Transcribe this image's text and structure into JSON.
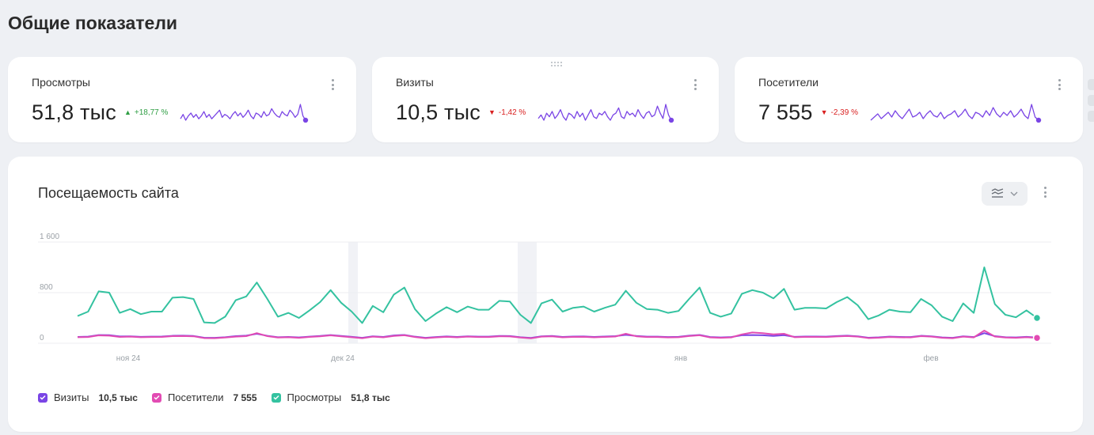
{
  "page_title": "Общие показатели",
  "colors": {
    "visits": "#7a45e5",
    "visitors": "#e24bb3",
    "views": "#34c2a0",
    "delta_up": "#2f9e44",
    "delta_down": "#d92020"
  },
  "metrics": [
    {
      "id": "views",
      "title": "Просмотры",
      "value": "51,8 тыс",
      "delta": "+18,77 %",
      "direction": "up",
      "sparkline": [
        6,
        9,
        5,
        8,
        10,
        7,
        9,
        6,
        8,
        11,
        7,
        9,
        6,
        8,
        10,
        12,
        7,
        9,
        8,
        6,
        9,
        11,
        8,
        10,
        7,
        9,
        12,
        8,
        6,
        10,
        9,
        7,
        11,
        8,
        9,
        13,
        10,
        8,
        7,
        11,
        9,
        8,
        12,
        10,
        7,
        9,
        16,
        8,
        5
      ]
    },
    {
      "id": "visits",
      "title": "Визиты",
      "value": "10,5 тыс",
      "delta": "-1,42 %",
      "direction": "down",
      "sparkline": [
        7,
        9,
        6,
        10,
        8,
        11,
        7,
        9,
        12,
        8,
        6,
        10,
        9,
        7,
        11,
        8,
        10,
        6,
        9,
        12,
        8,
        7,
        10,
        9,
        11,
        8,
        6,
        9,
        10,
        13,
        8,
        7,
        11,
        9,
        10,
        8,
        12,
        9,
        7,
        10,
        11,
        8,
        9,
        14,
        10,
        7,
        15,
        9,
        6
      ]
    },
    {
      "id": "visitors",
      "title": "Посетители",
      "value": "7 555",
      "delta": "-2,39 %",
      "direction": "down",
      "sparkline": [
        6,
        8,
        10,
        7,
        9,
        11,
        8,
        12,
        9,
        7,
        10,
        13,
        8,
        9,
        11,
        7,
        10,
        12,
        9,
        8,
        11,
        7,
        9,
        10,
        12,
        8,
        10,
        13,
        9,
        7,
        11,
        10,
        8,
        12,
        9,
        14,
        10,
        8,
        11,
        9,
        12,
        8,
        10,
        13,
        9,
        7,
        16,
        8,
        6
      ]
    }
  ],
  "traffic_chart": {
    "title": "Посещаемость сайта",
    "chart_data": {
      "type": "line",
      "yticks": [
        "1 600",
        "800",
        "0"
      ],
      "ylim": [
        0,
        1600
      ],
      "xticks": [
        "ноя 24",
        "дек 24",
        "янв",
        "фев"
      ],
      "series": [
        {
          "name": "Просмотры",
          "color": "#34c2a0",
          "values": [
            430,
            500,
            820,
            800,
            480,
            540,
            460,
            500,
            500,
            720,
            730,
            700,
            330,
            320,
            420,
            680,
            740,
            960,
            700,
            420,
            480,
            400,
            520,
            650,
            840,
            640,
            500,
            320,
            590,
            490,
            770,
            880,
            540,
            350,
            470,
            570,
            490,
            580,
            530,
            530,
            670,
            660,
            450,
            320,
            630,
            690,
            500,
            560,
            580,
            500,
            560,
            610,
            830,
            640,
            540,
            530,
            480,
            510,
            700,
            880,
            480,
            420,
            470,
            780,
            840,
            800,
            710,
            860,
            530,
            560,
            560,
            550,
            650,
            730,
            600,
            380,
            440,
            530,
            500,
            490,
            700,
            600,
            420,
            350,
            630,
            480,
            1200,
            620,
            450,
            410,
            520,
            400
          ]
        },
        {
          "name": "Визиты",
          "color": "#7a45e5",
          "values": [
            100,
            105,
            130,
            128,
            108,
            110,
            102,
            104,
            106,
            118,
            120,
            115,
            88,
            86,
            96,
            112,
            120,
            150,
            118,
            95,
            100,
            92,
            105,
            115,
            130,
            115,
            102,
            86,
            110,
            100,
            124,
            132,
            104,
            86,
            98,
            108,
            100,
            110,
            104,
            104,
            116,
            114,
            96,
            84,
            110,
            116,
            100,
            106,
            108,
            100,
            106,
            112,
            132,
            116,
            104,
            104,
            98,
            102,
            120,
            132,
            98,
            92,
            98,
            126,
            130,
            126,
            116,
            128,
            102,
            106,
            106,
            104,
            114,
            120,
            110,
            88,
            94,
            104,
            100,
            98,
            118,
            110,
            92,
            86,
            110,
            98,
            160,
            112,
            96,
            92,
            102,
            90
          ]
        },
        {
          "name": "Посетители",
          "color": "#e24bb3",
          "values": [
            95,
            98,
            125,
            120,
            100,
            104,
            96,
            98,
            100,
            112,
            114,
            110,
            82,
            80,
            90,
            105,
            112,
            160,
            112,
            90,
            96,
            86,
            100,
            110,
            125,
            110,
            96,
            80,
            104,
            94,
            116,
            126,
            98,
            80,
            92,
            102,
            94,
            104,
            98,
            98,
            110,
            108,
            90,
            78,
            104,
            110,
            94,
            100,
            102,
            94,
            100,
            106,
            150,
            110,
            98,
            98,
            92,
            96,
            114,
            126,
            92,
            86,
            92,
            140,
            170,
            160,
            140,
            150,
            96,
            100,
            100,
            98,
            108,
            114,
            104,
            82,
            88,
            98,
            94,
            92,
            112,
            104,
            86,
            80,
            104,
            92,
            200,
            106,
            90,
            86,
            96,
            85
          ]
        }
      ]
    },
    "legend": [
      {
        "name": "Визиты",
        "value": "10,5 тыс",
        "color": "#7a45e5"
      },
      {
        "name": "Посетители",
        "value": "7 555",
        "color": "#e24bb3"
      },
      {
        "name": "Просмотры",
        "value": "51,8 тыс",
        "color": "#34c2a0"
      }
    ],
    "chart_type_icon": "stacked-lines-icon",
    "dropdown_icon": "chevron-down-icon"
  }
}
